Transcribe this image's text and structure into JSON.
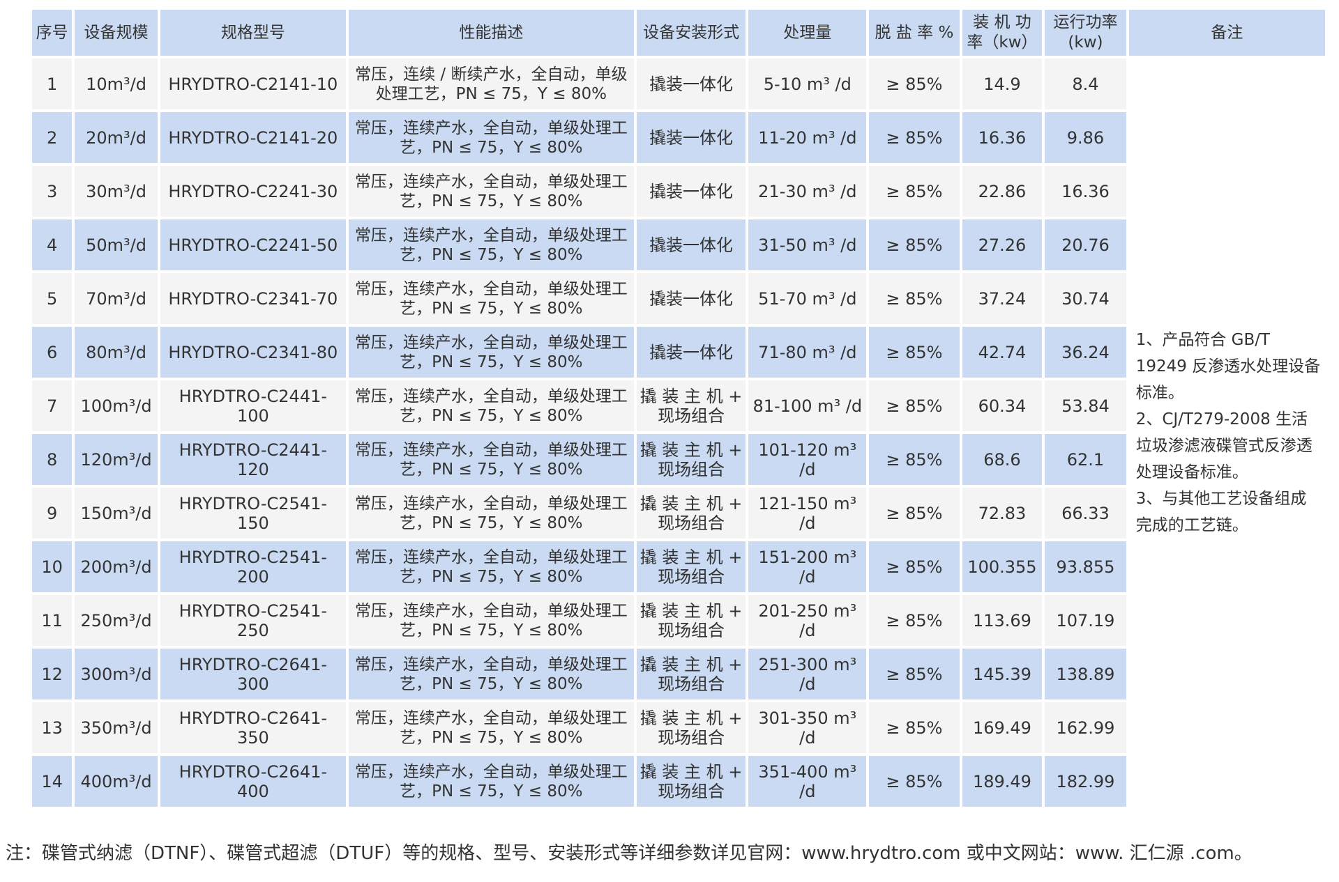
{
  "headers": {
    "no": "序号",
    "scale": "设备规模",
    "model": "规格型号",
    "performance": "性能描述",
    "install": "设备安装形式",
    "capacity": "处理量",
    "desalination": "脱 盐 率 %",
    "installed_power": "装 机 功 率（kw）",
    "running_power": "运行功率(kw)",
    "remarks": "备注"
  },
  "rows": [
    {
      "no": "1",
      "scale": "10m³/d",
      "model": "HRYDTRO-C2141-10",
      "performance": "常压，连续 / 断续产水，全自动，单级处理工艺，PN ≤ 75，Y ≤ 80%",
      "install": "撬装一体化",
      "capacity": "5-10 m³ /d",
      "desalination": "≥ 85%",
      "installed_power": "14.9",
      "running_power": "8.4"
    },
    {
      "no": "2",
      "scale": "20m³/d",
      "model": "HRYDTRO-C2141-20",
      "performance": "常压，连续产水，全自动，单级处理工艺，PN ≤ 75，Y ≤ 80%",
      "install": "撬装一体化",
      "capacity": "11-20 m³ /d",
      "desalination": "≥ 85%",
      "installed_power": "16.36",
      "running_power": "9.86"
    },
    {
      "no": "3",
      "scale": "30m³/d",
      "model": "HRYDTRO-C2241-30",
      "performance": "常压，连续产水，全自动，单级处理工艺，PN ≤ 75，Y ≤ 80%",
      "install": "撬装一体化",
      "capacity": "21-30 m³ /d",
      "desalination": "≥ 85%",
      "installed_power": "22.86",
      "running_power": "16.36"
    },
    {
      "no": "4",
      "scale": "50m³/d",
      "model": "HRYDTRO-C2241-50",
      "performance": "常压，连续产水，全自动，单级处理工艺，PN ≤ 75，Y ≤ 80%",
      "install": "撬装一体化",
      "capacity": "31-50 m³ /d",
      "desalination": "≥ 85%",
      "installed_power": "27.26",
      "running_power": "20.76"
    },
    {
      "no": "5",
      "scale": "70m³/d",
      "model": "HRYDTRO-C2341-70",
      "performance": "常压，连续产水，全自动，单级处理工艺，PN ≤ 75，Y ≤ 80%",
      "install": "撬装一体化",
      "capacity": "51-70 m³ /d",
      "desalination": "≥ 85%",
      "installed_power": "37.24",
      "running_power": "30.74"
    },
    {
      "no": "6",
      "scale": "80m³/d",
      "model": "HRYDTRO-C2341-80",
      "performance": "常压，连续产水，全自动，单级处理工艺，PN ≤ 75，Y ≤ 80%",
      "install": "撬装一体化",
      "capacity": "71-80 m³ /d",
      "desalination": "≥ 85%",
      "installed_power": "42.74",
      "running_power": "36.24"
    },
    {
      "no": "7",
      "scale": "100m³/d",
      "model": "HRYDTRO-C2441-100",
      "performance": "常压，连续产水，全自动，单级处理工艺，PN ≤ 75，Y ≤ 80%",
      "install": "撬 装 主 机 + 现场组合",
      "capacity": "81-100 m³ /d",
      "desalination": "≥ 85%",
      "installed_power": "60.34",
      "running_power": "53.84"
    },
    {
      "no": "8",
      "scale": "120m³/d",
      "model": "HRYDTRO-C2441-120",
      "performance": "常压，连续产水，全自动，单级处理工艺，PN ≤ 75，Y ≤ 80%",
      "install": "撬 装 主 机 + 现场组合",
      "capacity": "101-120 m³ /d",
      "desalination": "≥ 85%",
      "installed_power": "68.6",
      "running_power": "62.1"
    },
    {
      "no": "9",
      "scale": "150m³/d",
      "model": "HRYDTRO-C2541-150",
      "performance": "常压，连续产水，全自动，单级处理工艺，PN ≤ 75，Y ≤ 80%",
      "install": "撬 装 主 机 + 现场组合",
      "capacity": "121-150 m³ /d",
      "desalination": "≥ 85%",
      "installed_power": "72.83",
      "running_power": "66.33"
    },
    {
      "no": "10",
      "scale": "200m³/d",
      "model": "HRYDTRO-C2541-200",
      "performance": "常压，连续产水，全自动，单级处理工艺，PN ≤ 75，Y ≤ 80%",
      "install": "撬 装 主 机 + 现场组合",
      "capacity": "151-200 m³ /d",
      "desalination": "≥ 85%",
      "installed_power": "100.355",
      "running_power": "93.855"
    },
    {
      "no": "11",
      "scale": "250m³/d",
      "model": "HRYDTRO-C2541-250",
      "performance": "常压，连续产水，全自动，单级处理工艺，PN ≤ 75，Y ≤ 80%",
      "install": "撬 装 主 机 + 现场组合",
      "capacity": "201-250 m³ /d",
      "desalination": "≥ 85%",
      "installed_power": "113.69",
      "running_power": "107.19"
    },
    {
      "no": "12",
      "scale": "300m³/d",
      "model": "HRYDTRO-C2641-300",
      "performance": "常压，连续产水，全自动，单级处理工艺，PN ≤ 75，Y ≤ 80%",
      "install": "撬 装 主 机 + 现场组合",
      "capacity": "251-300 m³ /d",
      "desalination": "≥ 85%",
      "installed_power": "145.39",
      "running_power": "138.89"
    },
    {
      "no": "13",
      "scale": "350m³/d",
      "model": "HRYDTRO-C2641-350",
      "performance": "常压，连续产水，全自动，单级处理工艺，PN ≤ 75，Y ≤ 80%",
      "install": "撬 装 主 机 + 现场组合",
      "capacity": "301-350 m³ /d",
      "desalination": "≥ 85%",
      "installed_power": "169.49",
      "running_power": "162.99"
    },
    {
      "no": "14",
      "scale": "400m³/d",
      "model": "HRYDTRO-C2641-400",
      "performance": "常压，连续产水，全自动，单级处理工艺，PN ≤ 75，Y ≤ 80%",
      "install": "撬 装 主 机 + 现场组合",
      "capacity": "351-400 m³ /d",
      "desalination": "≥ 85%",
      "installed_power": "189.49",
      "running_power": "182.99"
    }
  ],
  "remarks": [
    "1、产品符合 GB/T 19249 反渗透水处理设备标准。",
    "2、CJ/T279-2008 生活垃圾渗滤液碟管式反渗透处理设备标准。",
    "3、与其他工艺设备组成完成的工艺链。"
  ],
  "footnote": "注：碟管式纳滤（DTNF）、碟管式超滤（DTUF）等的规格、型号、安装形式等详细参数详见官网：www.hrydtro.com 或中文网站：www. 汇仁源 .com。"
}
